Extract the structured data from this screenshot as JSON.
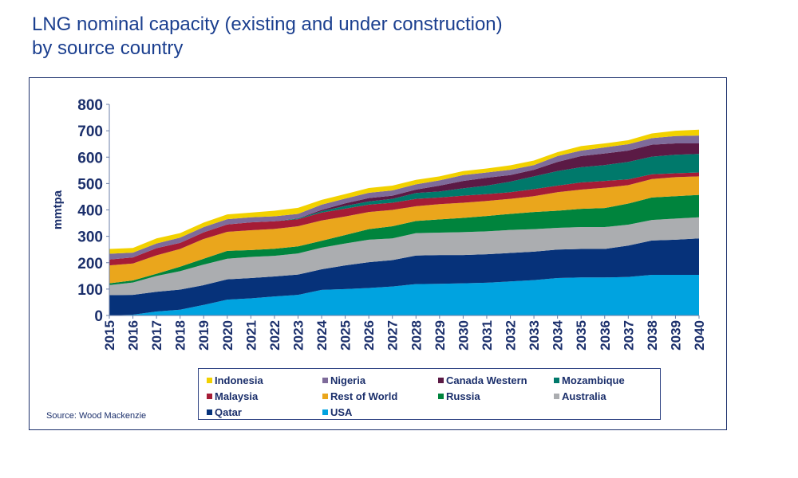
{
  "title_line1": "LNG nominal capacity (existing and under construction)",
  "title_line2": "by source country",
  "source": "Source: Wood Mackenzie",
  "chart_data": {
    "type": "area",
    "stacked": true,
    "ylabel": "mmtpa",
    "xlabel": "",
    "ylim": [
      0,
      800
    ],
    "yticks": [
      0,
      100,
      200,
      300,
      400,
      500,
      600,
      700,
      800
    ],
    "grid": false,
    "legend_position": "bottom",
    "x": [
      2015,
      2016,
      2017,
      2018,
      2019,
      2020,
      2021,
      2022,
      2023,
      2024,
      2025,
      2026,
      2027,
      2028,
      2029,
      2030,
      2031,
      2032,
      2033,
      2034,
      2035,
      2036,
      2037,
      2038,
      2039,
      2040
    ],
    "series": [
      {
        "name": "USA",
        "color": "#00a3e0",
        "values": [
          0,
          3,
          15,
          22,
          40,
          60,
          65,
          72,
          78,
          97,
          100,
          104,
          110,
          119,
          120,
          122,
          124,
          129,
          134,
          142,
          144,
          144,
          146,
          154,
          154,
          154
        ]
      },
      {
        "name": "Qatar",
        "color": "#06327a",
        "values": [
          77,
          75,
          75,
          76,
          75,
          77,
          77,
          76,
          77,
          78,
          90,
          98,
          100,
          108,
          109,
          107,
          108,
          108,
          108,
          108,
          108,
          108,
          119,
          130,
          133,
          138
        ]
      },
      {
        "name": "Australia",
        "color": "#abadb0",
        "values": [
          38,
          47,
          60,
          70,
          78,
          78,
          80,
          78,
          80,
          82,
          83,
          85,
          82,
          85,
          85,
          87,
          87,
          87,
          85,
          82,
          83,
          83,
          79,
          78,
          80,
          80
        ]
      },
      {
        "name": "Russia",
        "color": "#00843d",
        "values": [
          7,
          8,
          8,
          17,
          22,
          30,
          26,
          27,
          27,
          26,
          32,
          40,
          46,
          46,
          50,
          54,
          58,
          61,
          65,
          65,
          69,
          72,
          80,
          85,
          85,
          85
        ]
      },
      {
        "name": "Rest of World",
        "color": "#eaa61c",
        "values": [
          68,
          64,
          70,
          67,
          75,
          72,
          75,
          75,
          76,
          77,
          70,
          65,
          62,
          56,
          58,
          57,
          57,
          57,
          60,
          70,
          73,
          77,
          70,
          70,
          72,
          70
        ]
      },
      {
        "name": "Malaysia",
        "color": "#a51c36",
        "values": [
          22,
          23,
          27,
          23,
          25,
          28,
          30,
          29,
          27,
          30,
          30,
          28,
          27,
          28,
          25,
          27,
          26,
          25,
          27,
          25,
          27,
          26,
          22,
          18,
          15,
          15
        ]
      },
      {
        "name": "Mozambique",
        "color": "#00796b",
        "values": [
          0,
          0,
          0,
          0,
          0,
          0,
          0,
          0,
          3,
          5,
          10,
          12,
          15,
          22,
          23,
          28,
          32,
          40,
          48,
          55,
          58,
          60,
          66,
          67,
          70,
          70
        ]
      },
      {
        "name": "Canada Western",
        "color": "#5b1a45",
        "values": [
          0,
          0,
          0,
          0,
          0,
          0,
          0,
          0,
          0,
          5,
          10,
          13,
          12,
          13,
          22,
          28,
          30,
          25,
          25,
          35,
          42,
          44,
          43,
          45,
          43,
          40
        ]
      },
      {
        "name": "Nigeria",
        "color": "#7e6b9a",
        "values": [
          22,
          18,
          18,
          20,
          20,
          20,
          19,
          19,
          17,
          20,
          18,
          20,
          20,
          20,
          20,
          22,
          20,
          20,
          18,
          22,
          21,
          23,
          24,
          25,
          28,
          30
        ]
      },
      {
        "name": "Indonesia",
        "color": "#f2d100",
        "values": [
          18,
          18,
          19,
          17,
          17,
          18,
          18,
          21,
          23,
          18,
          17,
          18,
          18,
          17,
          15,
          15,
          15,
          17,
          17,
          15,
          17,
          15,
          15,
          18,
          20,
          22
        ]
      }
    ],
    "legend_order": [
      "Indonesia",
      "Nigeria",
      "Canada Western",
      "Mozambique",
      "Malaysia",
      "Rest of World",
      "Russia",
      "Australia",
      "Qatar",
      "USA"
    ]
  }
}
